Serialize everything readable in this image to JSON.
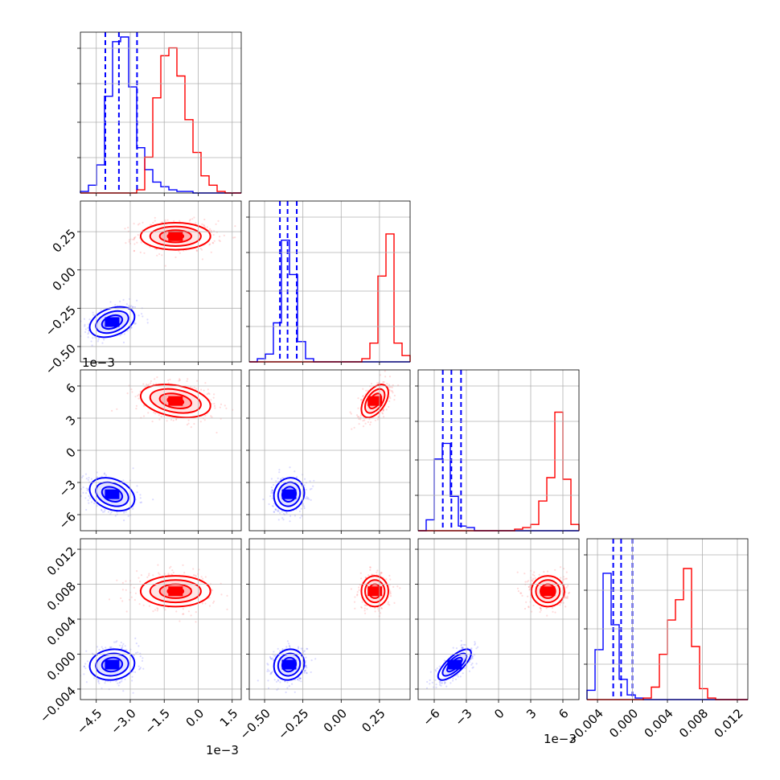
{
  "chart_data": {
    "type": "scatter",
    "plot_style": "corner",
    "grid": true,
    "colors": {
      "blue": "#0000ff",
      "red": "#ff0000"
    },
    "offset_labels": {
      "p0": "1e−3",
      "p2": "1e−3"
    },
    "params": [
      {
        "id": "p0",
        "range": [
          -0.0052,
          0.0019
        ],
        "ticks": [
          -0.0045,
          -0.003,
          -0.0015,
          0.0,
          0.0015
        ],
        "tick_labels": [
          "−4.5",
          "−3.0",
          "−1.5",
          "0.0",
          "1.5"
        ]
      },
      {
        "id": "p1",
        "range": [
          -0.6,
          0.45
        ],
        "ticks": [
          -0.5,
          -0.25,
          0.0,
          0.25
        ],
        "tick_labels": [
          "−0.50",
          "−0.25",
          "0.00",
          "0.25"
        ]
      },
      {
        "id": "p2",
        "range": [
          -0.0075,
          0.0075
        ],
        "ticks": [
          -0.006,
          -0.003,
          0.0,
          0.003,
          0.006
        ],
        "tick_labels": [
          "−6",
          "−3",
          "0",
          "3",
          "6"
        ]
      },
      {
        "id": "p3",
        "range": [
          -0.0052,
          0.0132
        ],
        "ticks": [
          -0.004,
          0.0,
          0.004,
          0.008,
          0.012
        ],
        "tick_labels": [
          "−0.004",
          "0.000",
          "0.004",
          "0.008",
          "0.012"
        ]
      }
    ],
    "series": [
      {
        "color": "blue",
        "means": [
          -0.0038,
          -0.34,
          -0.0041,
          -0.0012
        ],
        "sds": [
          0.00045,
          0.045,
          0.0007,
          0.0008
        ],
        "quantiles": [
          [
            -0.0041,
            -0.0035,
            -0.0027
          ],
          [
            -0.4,
            -0.35,
            -0.29
          ],
          [
            -0.0052,
            -0.0044,
            -0.0035
          ],
          [
            -0.0022,
            -0.0013,
            0.0
          ]
        ],
        "correlations": {
          "0-1": 0.35,
          "0-2": -0.3,
          "0-3": 0.1,
          "1-2": 0.1,
          "1-3": 0.1,
          "2-3": 0.75
        }
      },
      {
        "color": "red",
        "means": [
          -0.001,
          0.22,
          0.0046,
          0.0072
        ],
        "sds": [
          0.0007,
          0.04,
          0.0007,
          0.0008
        ],
        "correlations": {
          "0-1": 0.0,
          "0-2": -0.3,
          "0-3": 0.0,
          "1-2": 0.5,
          "1-3": 0.0,
          "2-3": 0.0
        }
      }
    ],
    "histograms": {
      "p0": {
        "edges": [
          -0.0052,
          0.0019
        ],
        "blue": [
          0.01,
          0.05,
          0.18,
          0.62,
          0.97,
          1.0,
          0.68,
          0.29,
          0.15,
          0.07,
          0.04,
          0.02,
          0.01,
          0.01,
          0.0,
          0.0,
          0.0,
          0.0,
          0.0,
          0.0
        ],
        "red": [
          0.0,
          0.0,
          0.0,
          0.0,
          0.0,
          0.0,
          0.0,
          0.02,
          0.23,
          0.61,
          0.88,
          0.93,
          0.75,
          0.47,
          0.26,
          0.11,
          0.05,
          0.01,
          0.0,
          0.0
        ]
      },
      "p1": {
        "edges": [
          -0.6,
          0.45
        ],
        "blue": [
          0.0,
          0.02,
          0.05,
          0.25,
          0.78,
          0.56,
          0.13,
          0.02,
          0.0,
          0.0,
          0.0,
          0.0,
          0.0,
          0.0,
          0.0,
          0.0,
          0.0,
          0.0,
          0.0,
          0.0
        ],
        "red": [
          0.0,
          0.0,
          0.0,
          0.0,
          0.0,
          0.0,
          0.0,
          0.0,
          0.0,
          0.0,
          0.0,
          0.0,
          0.0,
          0.0,
          0.02,
          0.12,
          0.55,
          0.82,
          0.12,
          0.04
        ]
      },
      "p2": {
        "edges": [
          -0.0075,
          0.0075
        ],
        "blue": [
          0.0,
          0.07,
          0.46,
          0.56,
          0.22,
          0.03,
          0.02,
          0.0,
          0.0,
          0.0,
          0.0,
          0.0,
          0.0,
          0.0,
          0.0,
          0.0,
          0.0,
          0.0,
          0.0,
          0.0
        ],
        "red": [
          0.0,
          0.0,
          0.0,
          0.0,
          0.0,
          0.0,
          0.0,
          0.0,
          0.0,
          0.0,
          0.0,
          0.0,
          0.01,
          0.02,
          0.04,
          0.19,
          0.34,
          0.76,
          0.33,
          0.04
        ]
      },
      "p3": {
        "edges": [
          -0.0052,
          0.0132
        ],
        "blue": [
          0.06,
          0.32,
          0.81,
          0.48,
          0.13,
          0.03,
          0.01,
          0.0,
          0.0,
          0.0,
          0.0,
          0.0,
          0.0,
          0.0,
          0.0,
          0.0,
          0.0,
          0.0,
          0.0,
          0.0
        ],
        "red": [
          0.0,
          0.0,
          0.0,
          0.0,
          0.0,
          0.0,
          0.0,
          0.01,
          0.08,
          0.29,
          0.51,
          0.64,
          0.84,
          0.34,
          0.07,
          0.01,
          0.0,
          0.0,
          0.0,
          0.0
        ]
      }
    }
  }
}
